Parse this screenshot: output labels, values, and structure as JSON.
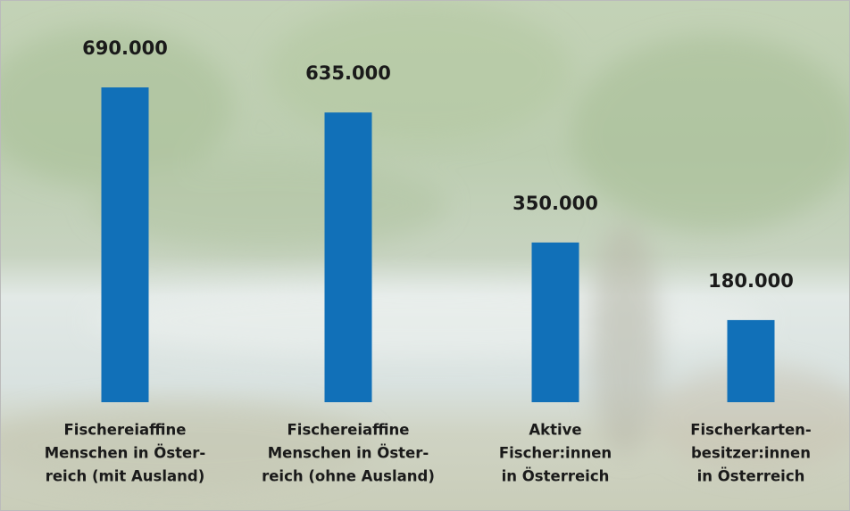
{
  "chart_data": {
    "type": "bar",
    "categories": [
      [
        "Fischereiaffine",
        "Menschen in Öster-",
        "reich (mit Ausland)"
      ],
      [
        "Fischereiaffine",
        "Menschen in Öster-",
        "reich (ohne Ausland)"
      ],
      [
        "Aktive",
        "Fischer:innen",
        "in Österreich"
      ],
      [
        "Fischerkarten-",
        "besitzer:innen",
        "in Österreich"
      ]
    ],
    "values": [
      690000,
      635000,
      350000,
      180000
    ],
    "value_labels": [
      "690.000",
      "635.000",
      "350.000",
      "180.000"
    ],
    "color": "#1170b8"
  }
}
